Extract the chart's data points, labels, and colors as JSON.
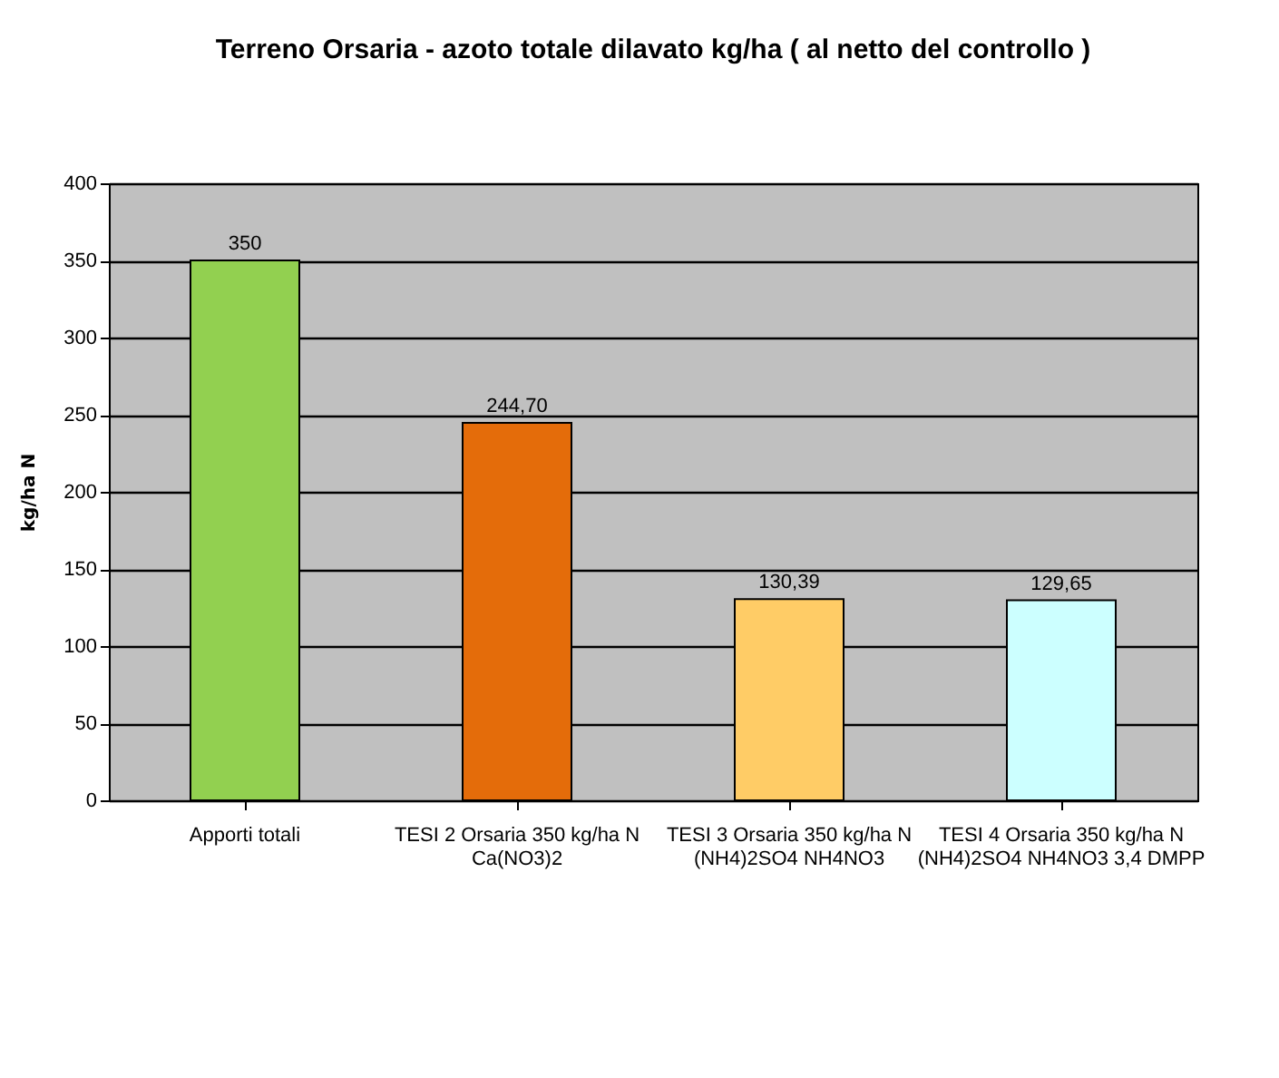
{
  "chart_data": {
    "type": "bar",
    "title": "Terreno Orsaria - azoto totale dilavato kg/ha ( al netto del controllo )",
    "ylabel": "kg/ha  N",
    "categories": [
      "Apporti totali",
      "TESI 2 Orsaria 350 kg/ha N Ca(NO3)2",
      "TESI 3 Orsaria 350 kg/ha N (NH4)2SO4 NH4NO3",
      "TESI 4 Orsaria 350 kg/ha N (NH4)2SO4 NH4NO3 3,4 DMPP"
    ],
    "values": [
      350,
      244.7,
      130.39,
      129.65
    ],
    "colors": [
      "#92d050",
      "#e46c0a",
      "#ffcc66",
      "#ccffff"
    ],
    "value_labels": [
      "350",
      "244,70",
      "130,39",
      "129,65"
    ],
    "ylim": [
      0,
      400
    ],
    "yticks": [
      0,
      50,
      100,
      150,
      200,
      250,
      300,
      350,
      400
    ],
    "grid": "y"
  }
}
